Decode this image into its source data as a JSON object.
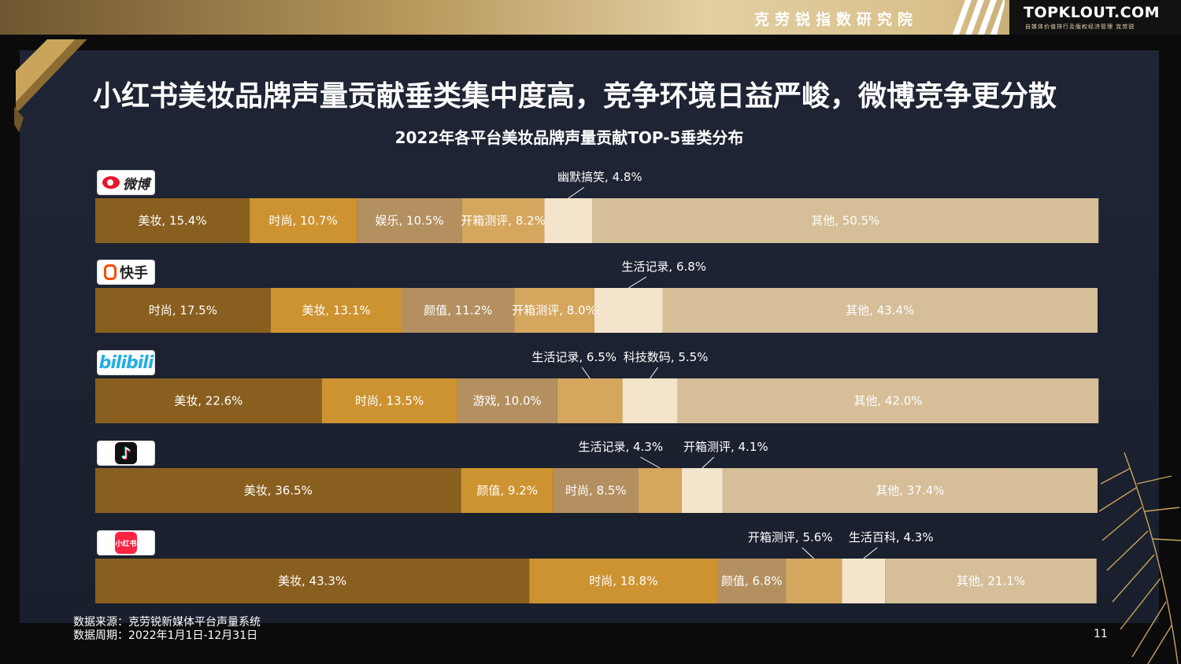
{
  "header": {
    "cn_name": "克劳锐指数研究院",
    "brand_logo": "TOPKLOUT.COM",
    "brand_tagline": "自媒体价值排行及版权经济管理",
    "brand_tagline_cn": "克劳锐"
  },
  "headline": "小红书美妆品牌声量贡献垂类集中度高，竞争环境日益严峻，微博竞争更分散",
  "logos": {
    "weibo_text": "微博",
    "kuaishou_text": "快手",
    "bilibili_text": "bilibili",
    "douyin_mark": "♪",
    "xhs_text": "小红书"
  },
  "colors": {
    "dark": "#895f1f",
    "gold": "#cd9330",
    "tan": "#b49060",
    "light_gold": "#d4a65e",
    "cream": "#f3e4cb",
    "beige": "#d5be98",
    "label": "#ffffff",
    "callout_label": "#ffffff",
    "leader": "#ffffff"
  },
  "chart_data": {
    "type": "bar",
    "orientation": "horizontal",
    "stacked": true,
    "normalized": true,
    "title": "2022年各平台美妆品牌声量贡献TOP-5垂类分布",
    "categories": [
      "微博",
      "快手",
      "bilibili",
      "抖音",
      "小红书"
    ],
    "x_unit": "%",
    "xlim": [
      0,
      100
    ],
    "grid": false,
    "legend": "none",
    "rows": [
      {
        "platform": "微博",
        "segments": [
          {
            "label": "美妆",
            "value": 15.4,
            "color": "dark",
            "text": "美妆, 15.4%"
          },
          {
            "label": "时尚",
            "value": 10.7,
            "color": "gold",
            "text": "时尚, 10.7%"
          },
          {
            "label": "娱乐",
            "value": 10.5,
            "color": "tan",
            "text": "娱乐, 10.5%"
          },
          {
            "label": "开箱测评",
            "value": 8.2,
            "color": "light_gold",
            "text": "开箱测评, 8.2%"
          },
          {
            "label": "幽默搞笑",
            "value": 4.8,
            "color": "cream",
            "text": "幽默搞笑, 4.8%",
            "callout": true
          },
          {
            "label": "其他",
            "value": 50.5,
            "color": "beige",
            "text": "其他, 50.5%"
          }
        ]
      },
      {
        "platform": "快手",
        "segments": [
          {
            "label": "时尚",
            "value": 17.5,
            "color": "dark",
            "text": "时尚, 17.5%"
          },
          {
            "label": "美妆",
            "value": 13.1,
            "color": "gold",
            "text": "美妆, 13.1%"
          },
          {
            "label": "颜值",
            "value": 11.2,
            "color": "tan",
            "text": "颜值, 11.2%"
          },
          {
            "label": "开箱测评",
            "value": 8.0,
            "color": "light_gold",
            "text": "开箱测评, 8.0%"
          },
          {
            "label": "生活记录",
            "value": 6.8,
            "color": "cream",
            "text": "生活记录, 6.8%",
            "callout": true
          },
          {
            "label": "其他",
            "value": 43.4,
            "color": "beige",
            "text": "其他, 43.4%"
          }
        ]
      },
      {
        "platform": "bilibili",
        "segments": [
          {
            "label": "美妆",
            "value": 22.6,
            "color": "dark",
            "text": "美妆, 22.6%"
          },
          {
            "label": "时尚",
            "value": 13.5,
            "color": "gold",
            "text": "时尚, 13.5%"
          },
          {
            "label": "游戏",
            "value": 10.0,
            "color": "tan",
            "text": "游戏, 10.0%"
          },
          {
            "label": "生活记录",
            "value": 6.5,
            "color": "light_gold",
            "text": "生活记录, 6.5%",
            "callout": true
          },
          {
            "label": "科技数码",
            "value": 5.5,
            "color": "cream",
            "text": "科技数码, 5.5%",
            "callout": true
          },
          {
            "label": "其他",
            "value": 42.0,
            "color": "beige",
            "text": "其他, 42.0%"
          }
        ]
      },
      {
        "platform": "抖音",
        "segments": [
          {
            "label": "美妆",
            "value": 36.5,
            "color": "dark",
            "text": "美妆, 36.5%"
          },
          {
            "label": "颜值",
            "value": 9.2,
            "color": "gold",
            "text": "颜值, 9.2%"
          },
          {
            "label": "时尚",
            "value": 8.5,
            "color": "tan",
            "text": "时尚, 8.5%"
          },
          {
            "label": "生活记录",
            "value": 4.3,
            "color": "light_gold",
            "text": "生活记录, 4.3%",
            "callout": true
          },
          {
            "label": "开箱测评",
            "value": 4.1,
            "color": "cream",
            "text": "开箱测评, 4.1%",
            "callout": true
          },
          {
            "label": "其他",
            "value": 37.4,
            "color": "beige",
            "text": "其他, 37.4%"
          }
        ]
      },
      {
        "platform": "小红书",
        "segments": [
          {
            "label": "美妆",
            "value": 43.3,
            "color": "dark",
            "text": "美妆, 43.3%"
          },
          {
            "label": "时尚",
            "value": 18.8,
            "color": "gold",
            "text": "时尚, 18.8%"
          },
          {
            "label": "颜值",
            "value": 6.8,
            "color": "tan",
            "text": "颜值, 6.8%"
          },
          {
            "label": "开箱测评",
            "value": 5.6,
            "color": "light_gold",
            "text": "开箱测评, 5.6%",
            "callout": true
          },
          {
            "label": "生活百科",
            "value": 4.3,
            "color": "cream",
            "text": "生活百科, 4.3%",
            "callout": true
          },
          {
            "label": "其他",
            "value": 21.1,
            "color": "beige",
            "text": "其他, 21.1%"
          }
        ]
      }
    ]
  },
  "footer": {
    "source": "数据来源：克劳锐新媒体平台声量系统",
    "period": "数据周期：2022年1月1日-12月31日",
    "page": "11"
  }
}
